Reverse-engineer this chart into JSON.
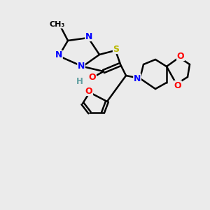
{
  "bg_color": "#ebebeb",
  "bond_color": "#000000",
  "bond_width": 1.8,
  "atom_colors": {
    "N": "#0000ff",
    "S": "#b8b800",
    "O": "#ff0000",
    "C": "#000000",
    "H": "#5f9ea0"
  },
  "font_size": 9
}
